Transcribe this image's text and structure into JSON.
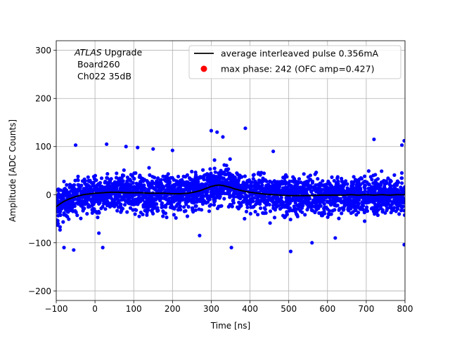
{
  "chart_data": {
    "type": "scatter",
    "xlabel": "Time [ns]",
    "ylabel": "Amplitude [ADC Counts]",
    "xlim": [
      -100,
      800
    ],
    "ylim": [
      -220,
      320
    ],
    "xticks": [
      -100,
      0,
      100,
      200,
      300,
      400,
      500,
      600,
      700,
      800
    ],
    "yticks": [
      -200,
      -100,
      0,
      100,
      200,
      300
    ],
    "xtick_labels": [
      "−100",
      "0",
      "100",
      "200",
      "300",
      "400",
      "500",
      "600",
      "700",
      "800"
    ],
    "ytick_labels": [
      "−200",
      "−100",
      "0",
      "100",
      "200",
      "300"
    ],
    "grid": true,
    "legend_position": "top-right",
    "annotation": {
      "line1_italic": "ATLAS",
      "line1_rest": " Upgrade",
      "line2": "Board260",
      "line3": "Ch022 35dB"
    },
    "series": [
      {
        "name": "average interleaved pulse 0.356mA",
        "kind": "line",
        "color": "#000000",
        "x": [
          -100,
          -90,
          -80,
          -70,
          -60,
          -50,
          -40,
          -30,
          -20,
          -10,
          0,
          20,
          40,
          60,
          80,
          100,
          120,
          140,
          160,
          180,
          200,
          220,
          240,
          260,
          270,
          280,
          290,
          300,
          310,
          320,
          330,
          340,
          350,
          360,
          380,
          400,
          420,
          440,
          460,
          480,
          500,
          520,
          540,
          560,
          580,
          600,
          620,
          640,
          660,
          680,
          700,
          720,
          740,
          760,
          780,
          800
        ],
        "y": [
          -25,
          -19,
          -14,
          -10,
          -7,
          -4,
          -2,
          0,
          1,
          2,
          3,
          4,
          5,
          5,
          4,
          4,
          4,
          3,
          3,
          3,
          2,
          2,
          3,
          6,
          8,
          11,
          14,
          17,
          19,
          20,
          19,
          17,
          15,
          12,
          8,
          5,
          3,
          1,
          0,
          -1,
          -2,
          -2,
          -2,
          -2,
          -1,
          -1,
          -1,
          -1,
          0,
          -1,
          0,
          -1,
          0,
          -1,
          0,
          0
        ]
      },
      {
        "name": "max phase: 242 (OFC amp=0.427)",
        "kind": "scatter",
        "color": "#ff0000",
        "x": [],
        "y": []
      }
    ],
    "scatter_cloud": {
      "color": "#0000ff",
      "typical_spread": 30,
      "outliers": [
        {
          "x": 315,
          "y": 130
        },
        {
          "x": 330,
          "y": 120
        },
        {
          "x": 388,
          "y": 138
        },
        {
          "x": 300,
          "y": 133
        },
        {
          "x": 30,
          "y": 105
        },
        {
          "x": -50,
          "y": 103
        },
        {
          "x": 80,
          "y": 100
        },
        {
          "x": 110,
          "y": 98
        },
        {
          "x": 200,
          "y": 92
        },
        {
          "x": 460,
          "y": 90
        },
        {
          "x": 720,
          "y": 115
        },
        {
          "x": 798,
          "y": 112
        },
        {
          "x": 792,
          "y": 103
        },
        {
          "x": -80,
          "y": -110
        },
        {
          "x": -55,
          "y": -115
        },
        {
          "x": 20,
          "y": -110
        },
        {
          "x": 352,
          "y": -110
        },
        {
          "x": 505,
          "y": -118
        },
        {
          "x": 798,
          "y": -104
        },
        {
          "x": 10,
          "y": -80
        },
        {
          "x": 560,
          "y": -100
        },
        {
          "x": 620,
          "y": -90
        },
        {
          "x": 270,
          "y": -85
        },
        {
          "x": 150,
          "y": 95
        }
      ]
    }
  }
}
